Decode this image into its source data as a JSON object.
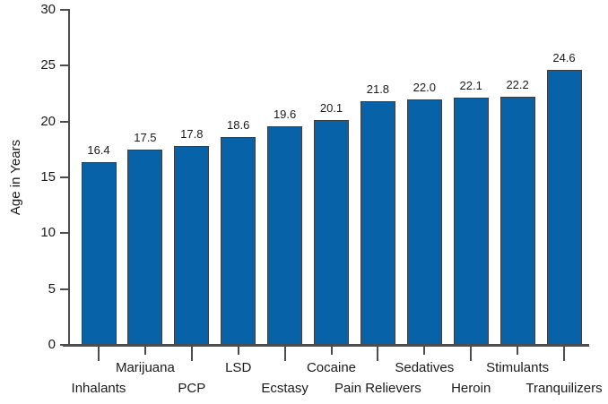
{
  "chart_data": {
    "type": "bar",
    "title": "",
    "xlabel": "",
    "ylabel": "Age in Years",
    "categories": [
      "Inhalants",
      "Marijuana",
      "PCP",
      "LSD",
      "Ecstasy",
      "Cocaine",
      "Pain Relievers",
      "Sedatives",
      "Heroin",
      "Stimulants",
      "Tranquilizers"
    ],
    "values": [
      16.4,
      17.5,
      17.8,
      18.6,
      19.6,
      20.1,
      21.8,
      22.0,
      22.1,
      22.2,
      24.6
    ],
    "value_labels": [
      "16.4",
      "17.5",
      "17.8",
      "18.6",
      "19.6",
      "20.1",
      "21.8",
      "22.0",
      "22.1",
      "22.2",
      "24.6"
    ],
    "ylim": [
      0,
      30
    ],
    "yticks": [
      0,
      5,
      10,
      15,
      20,
      25,
      30
    ],
    "ytick_labels": [
      "0",
      "5",
      "10",
      "15",
      "20",
      "25",
      "30"
    ],
    "grid": false,
    "legend_position": "none",
    "label_layout": "staggered-two-rows",
    "colors": {
      "bar_fill": "#0862a8",
      "bar_border": "#3d3d3d",
      "axis": "#4d4d4d",
      "text": "#1a1a1a",
      "background": "#ffffff"
    }
  }
}
